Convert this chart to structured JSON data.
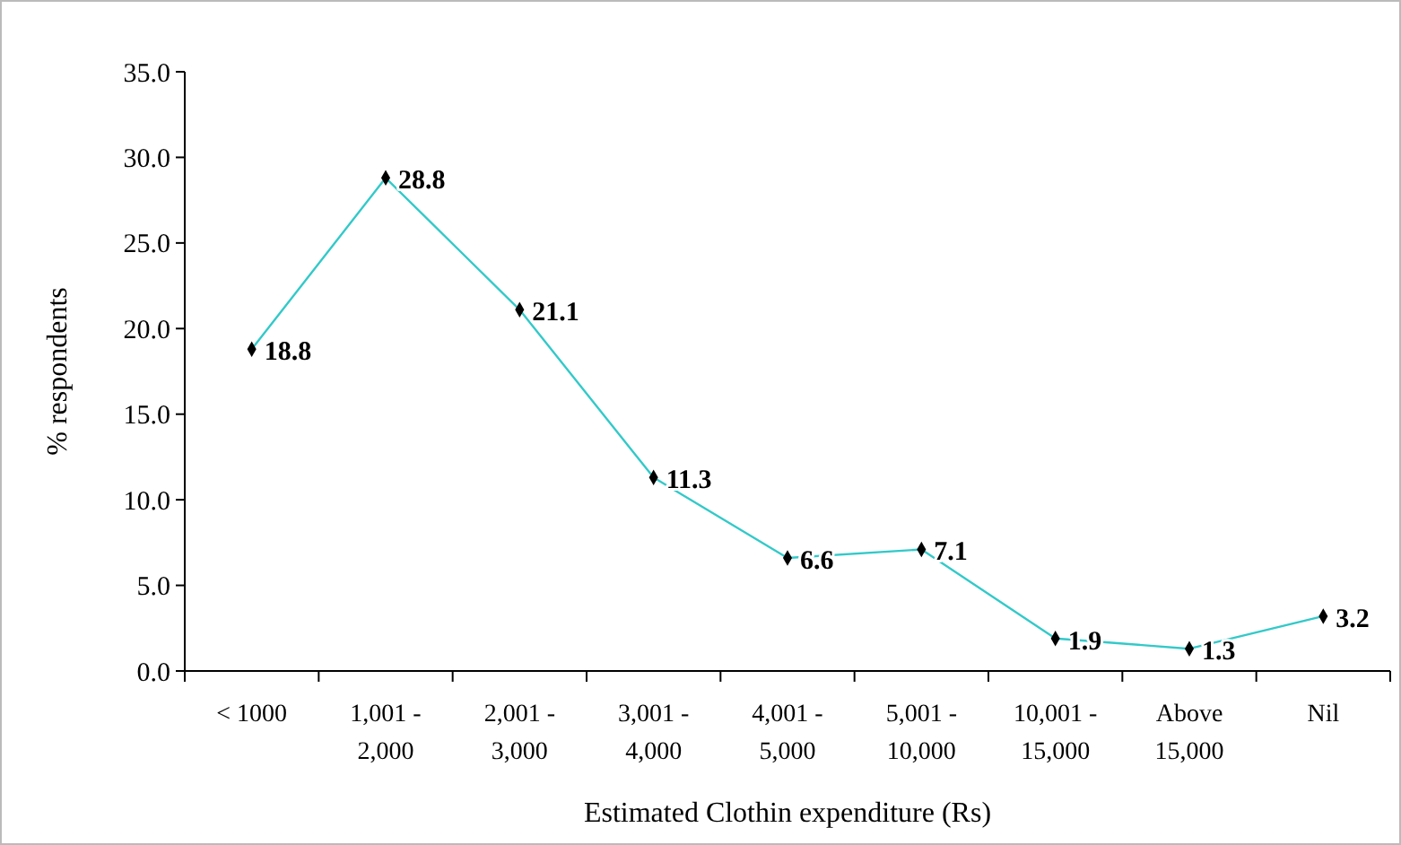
{
  "chart_data": {
    "type": "line",
    "xlabel": "Estimated Clothin expenditure (Rs)",
    "ylabel": "% respondents",
    "categories": [
      "< 1000",
      "1,001 - 2,000",
      "2,001 - 3,000",
      "3,001 - 4,000",
      "4,001 - 5,000",
      "5,001 - 10,000",
      "10,001 - 15,000",
      "Above 15,000",
      "Nil"
    ],
    "series": [
      {
        "color": "#33c9c9",
        "values": [
          18.8,
          28.8,
          21.1,
          11.3,
          6.6,
          7.1,
          1.9,
          1.3,
          3.2
        ]
      }
    ],
    "ylim": [
      0,
      35
    ],
    "yticks": [
      {
        "value": 0,
        "label": "0.0"
      },
      {
        "value": 5,
        "label": "5.0"
      },
      {
        "value": 10,
        "label": "10.0"
      },
      {
        "value": 15,
        "label": "15.0"
      },
      {
        "value": 20,
        "label": "20.0"
      },
      {
        "value": 25,
        "label": "25.0"
      },
      {
        "value": 30,
        "label": "30.0"
      },
      {
        "value": 35,
        "label": "35.0"
      }
    ],
    "marker": "diamond",
    "data_labels": true
  }
}
